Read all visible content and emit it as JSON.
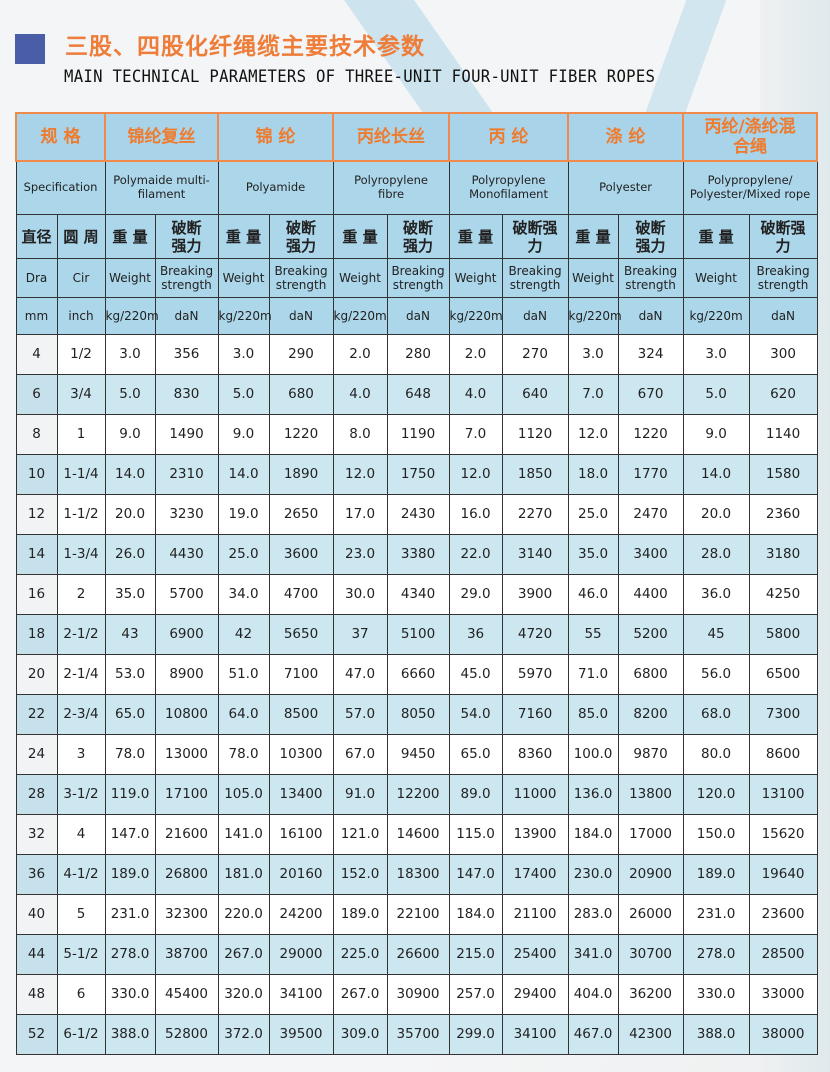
{
  "title": {
    "cn": "三股、四股化纤绳缆主要技术参数",
    "en": "MAIN TECHNICAL PARAMETERS OF THREE-UNIT FOUR-UNIT FIBER ROPES"
  },
  "colors": {
    "accent_orange": "#ee7d3a",
    "header_blue": "#a8d3e8",
    "row_blue": "#cde7f1",
    "title_square": "#4a5ea8"
  },
  "header": {
    "spec_cn": "规 格",
    "spec_en": "Specification",
    "materials": [
      {
        "cn": "锦纶复丝",
        "en": "Polymaide multi-filament"
      },
      {
        "cn": "锦 纶",
        "en": "Polyamide"
      },
      {
        "cn": "丙纶长丝",
        "en": "Polyropylene fibre"
      },
      {
        "cn": "丙 纶",
        "en": "Polyropylene Monofilament"
      },
      {
        "cn": "涤 纶",
        "en": "Polyester"
      },
      {
        "cn": "丙纶/涤纶混合绳",
        "en": "Polypropylene/ Polyester/Mixed rope"
      }
    ],
    "dia_cn": "直径",
    "cir_cn": "圆 周",
    "weight_cn": "重 量",
    "break_cn": "破断强力",
    "dia_en": "Dra",
    "cir_en": "Cir",
    "weight_en": "Weight",
    "break_en": "Breaking strength",
    "dia_unit": "mm",
    "cir_unit": "inch",
    "weight_unit": "kg/220m",
    "break_unit": "daN"
  },
  "rows": [
    [
      "4",
      "1/2",
      "3.0",
      "356",
      "3.0",
      "290",
      "2.0",
      "280",
      "2.0",
      "270",
      "3.0",
      "324",
      "3.0",
      "300"
    ],
    [
      "6",
      "3/4",
      "5.0",
      "830",
      "5.0",
      "680",
      "4.0",
      "648",
      "4.0",
      "640",
      "7.0",
      "670",
      "5.0",
      "620"
    ],
    [
      "8",
      "1",
      "9.0",
      "1490",
      "9.0",
      "1220",
      "8.0",
      "1190",
      "7.0",
      "1120",
      "12.0",
      "1220",
      "9.0",
      "1140"
    ],
    [
      "10",
      "1-1/4",
      "14.0",
      "2310",
      "14.0",
      "1890",
      "12.0",
      "1750",
      "12.0",
      "1850",
      "18.0",
      "1770",
      "14.0",
      "1580"
    ],
    [
      "12",
      "1-1/2",
      "20.0",
      "3230",
      "19.0",
      "2650",
      "17.0",
      "2430",
      "16.0",
      "2270",
      "25.0",
      "2470",
      "20.0",
      "2360"
    ],
    [
      "14",
      "1-3/4",
      "26.0",
      "4430",
      "25.0",
      "3600",
      "23.0",
      "3380",
      "22.0",
      "3140",
      "35.0",
      "3400",
      "28.0",
      "3180"
    ],
    [
      "16",
      "2",
      "35.0",
      "5700",
      "34.0",
      "4700",
      "30.0",
      "4340",
      "29.0",
      "3900",
      "46.0",
      "4400",
      "36.0",
      "4250"
    ],
    [
      "18",
      "2-1/2",
      "43",
      "6900",
      "42",
      "5650",
      "37",
      "5100",
      "36",
      "4720",
      "55",
      "5200",
      "45",
      "5800"
    ],
    [
      "20",
      "2-1/4",
      "53.0",
      "8900",
      "51.0",
      "7100",
      "47.0",
      "6660",
      "45.0",
      "5970",
      "71.0",
      "6800",
      "56.0",
      "6500"
    ],
    [
      "22",
      "2-3/4",
      "65.0",
      "10800",
      "64.0",
      "8500",
      "57.0",
      "8050",
      "54.0",
      "7160",
      "85.0",
      "8200",
      "68.0",
      "7300"
    ],
    [
      "24",
      "3",
      "78.0",
      "13000",
      "78.0",
      "10300",
      "67.0",
      "9450",
      "65.0",
      "8360",
      "100.0",
      "9870",
      "80.0",
      "8600"
    ],
    [
      "28",
      "3-1/2",
      "119.0",
      "17100",
      "105.0",
      "13400",
      "91.0",
      "12200",
      "89.0",
      "11000",
      "136.0",
      "13800",
      "120.0",
      "13100"
    ],
    [
      "32",
      "4",
      "147.0",
      "21600",
      "141.0",
      "16100",
      "121.0",
      "14600",
      "115.0",
      "13900",
      "184.0",
      "17000",
      "150.0",
      "15620"
    ],
    [
      "36",
      "4-1/2",
      "189.0",
      "26800",
      "181.0",
      "20160",
      "152.0",
      "18300",
      "147.0",
      "17400",
      "230.0",
      "20900",
      "189.0",
      "19640"
    ],
    [
      "40",
      "5",
      "231.0",
      "32300",
      "220.0",
      "24200",
      "189.0",
      "22100",
      "184.0",
      "21100",
      "283.0",
      "26000",
      "231.0",
      "23600"
    ],
    [
      "44",
      "5-1/2",
      "278.0",
      "38700",
      "267.0",
      "29000",
      "225.0",
      "26600",
      "215.0",
      "25400",
      "341.0",
      "30700",
      "278.0",
      "28500"
    ],
    [
      "48",
      "6",
      "330.0",
      "45400",
      "320.0",
      "34100",
      "267.0",
      "30900",
      "257.0",
      "29400",
      "404.0",
      "36200",
      "330.0",
      "33000"
    ],
    [
      "52",
      "6-1/2",
      "388.0",
      "52800",
      "372.0",
      "39500",
      "309.0",
      "35700",
      "299.0",
      "34100",
      "467.0",
      "42300",
      "388.0",
      "38000"
    ]
  ]
}
